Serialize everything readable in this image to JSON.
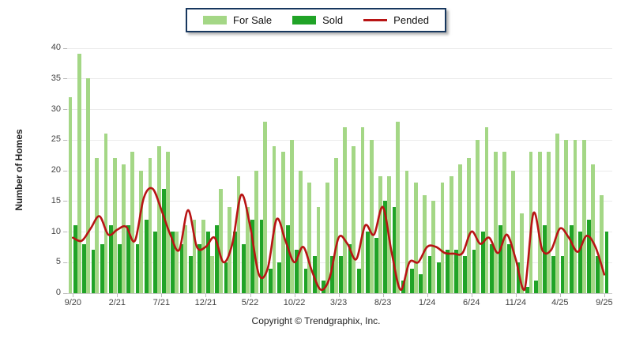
{
  "page": {
    "footer": "Copyright © Trendgraphix, Inc."
  },
  "legend": {
    "items": [
      {
        "label": "For Sale",
        "color": "#a4d786",
        "type": "swatch"
      },
      {
        "label": "Sold",
        "color": "#20a327",
        "type": "swatch"
      },
      {
        "label": "Pended",
        "color": "#b81414",
        "type": "line"
      }
    ]
  },
  "chart_data": {
    "type": "bar",
    "title": "",
    "xlabel": "",
    "ylabel": "Number of Homes",
    "ylim": [
      0,
      40
    ],
    "yticks": [
      0,
      5,
      10,
      15,
      20,
      25,
      30,
      35,
      40
    ],
    "grid": true,
    "legend_position": "top",
    "categories": [
      "9/20",
      "10/20",
      "11/20",
      "12/20",
      "1/21",
      "2/21",
      "3/21",
      "4/21",
      "5/21",
      "6/21",
      "7/21",
      "8/21",
      "9/21",
      "10/21",
      "11/21",
      "12/21",
      "1/22",
      "2/22",
      "3/22",
      "4/22",
      "5/22",
      "6/22",
      "7/22",
      "8/22",
      "9/22",
      "10/22",
      "11/22",
      "12/22",
      "1/23",
      "2/23",
      "3/23",
      "4/23",
      "5/23",
      "6/23",
      "7/23",
      "8/23",
      "9/23",
      "10/23",
      "11/23",
      "12/23",
      "1/24",
      "2/24",
      "3/24",
      "4/24",
      "5/24",
      "6/24",
      "7/24",
      "8/24",
      "9/24",
      "10/24",
      "11/24",
      "12/24",
      "1/25",
      "2/25",
      "3/25",
      "4/25",
      "5/25",
      "6/25",
      "7/25",
      "8/25",
      "9/25"
    ],
    "xticks_shown": [
      "9/20",
      "2/21",
      "7/21",
      "12/21",
      "5/22",
      "10/22",
      "3/23",
      "8/23",
      "1/24",
      "6/24",
      "11/24",
      "4/25",
      "9/25"
    ],
    "series": [
      {
        "name": "For Sale",
        "type": "bar",
        "color": "#a4d786",
        "values": [
          32,
          39,
          35,
          22,
          26,
          22,
          21,
          23,
          20,
          22,
          24,
          23,
          10,
          11,
          12,
          12,
          6,
          17,
          14,
          19,
          14,
          20,
          28,
          24,
          23,
          25,
          20,
          18,
          14,
          18,
          22,
          27,
          24,
          27,
          25,
          19,
          19,
          28,
          20,
          18,
          16,
          15,
          18,
          19,
          21,
          22,
          25,
          27,
          23,
          23,
          20,
          13,
          23,
          23,
          23,
          26,
          25,
          25,
          25,
          21,
          16
        ]
      },
      {
        "name": "Sold",
        "type": "bar",
        "color": "#20a327",
        "values": [
          11,
          8,
          7,
          8,
          11,
          8,
          11,
          8,
          12,
          10,
          17,
          10,
          8,
          6,
          8,
          10,
          11,
          5,
          10,
          8,
          12,
          12,
          4,
          5,
          11,
          7,
          4,
          6,
          2,
          6,
          6,
          8,
          4,
          10,
          9,
          15,
          14,
          2,
          4,
          3,
          6,
          5,
          7,
          7,
          6,
          7,
          10,
          8,
          11,
          8,
          5,
          1,
          2,
          11,
          6,
          6,
          11,
          10,
          12,
          6,
          10
        ]
      },
      {
        "name": "Pended",
        "type": "line",
        "color": "#b81414",
        "values": [
          9,
          8.5,
          10.5,
          12.5,
          9.5,
          10.3,
          10.8,
          8.5,
          15.5,
          17,
          13.5,
          9.5,
          7,
          13.5,
          7.5,
          7.5,
          9,
          5,
          8,
          16,
          11,
          3,
          4,
          12,
          8.5,
          5,
          7.5,
          3.5,
          0.5,
          2.5,
          9,
          8,
          5.5,
          11,
          9.5,
          14,
          6.5,
          0.5,
          5,
          5,
          7.5,
          7.5,
          6.5,
          6.4,
          6.5,
          10,
          8,
          9,
          6.5,
          9.5,
          5.5,
          0.5,
          13,
          7,
          7,
          10.5,
          9,
          6.7,
          9.3,
          7.5,
          3
        ]
      }
    ]
  }
}
